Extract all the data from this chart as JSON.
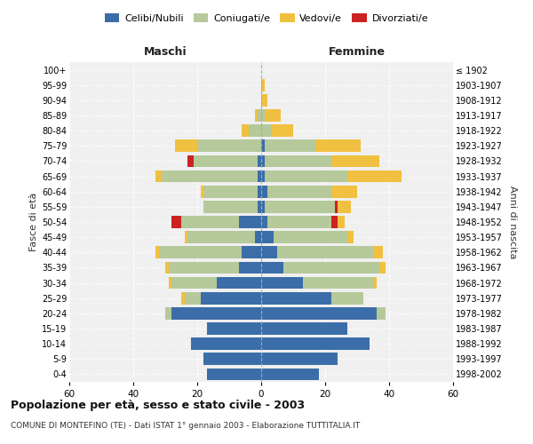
{
  "age_groups": [
    "0-4",
    "5-9",
    "10-14",
    "15-19",
    "20-24",
    "25-29",
    "30-34",
    "35-39",
    "40-44",
    "45-49",
    "50-54",
    "55-59",
    "60-64",
    "65-69",
    "70-74",
    "75-79",
    "80-84",
    "85-89",
    "90-94",
    "95-99",
    "100+"
  ],
  "birth_years": [
    "1998-2002",
    "1993-1997",
    "1988-1992",
    "1983-1987",
    "1978-1982",
    "1973-1977",
    "1968-1972",
    "1963-1967",
    "1958-1962",
    "1953-1957",
    "1948-1952",
    "1943-1947",
    "1938-1942",
    "1933-1937",
    "1928-1932",
    "1923-1927",
    "1918-1922",
    "1913-1917",
    "1908-1912",
    "1903-1907",
    "≤ 1902"
  ],
  "males": {
    "celibi": [
      17,
      18,
      22,
      17,
      28,
      19,
      14,
      7,
      6,
      2,
      7,
      1,
      1,
      1,
      1,
      0,
      0,
      0,
      0,
      0,
      0
    ],
    "coniugati": [
      0,
      0,
      0,
      0,
      2,
      5,
      14,
      22,
      26,
      21,
      18,
      17,
      17,
      30,
      20,
      20,
      4,
      1,
      0,
      0,
      0
    ],
    "vedovi": [
      0,
      0,
      0,
      0,
      0,
      1,
      1,
      1,
      1,
      1,
      0,
      0,
      1,
      2,
      0,
      7,
      2,
      1,
      0,
      0,
      0
    ],
    "divorziati": [
      0,
      0,
      0,
      0,
      0,
      0,
      0,
      0,
      0,
      0,
      3,
      0,
      0,
      0,
      2,
      0,
      0,
      0,
      0,
      0,
      0
    ]
  },
  "females": {
    "nubili": [
      18,
      24,
      34,
      27,
      36,
      22,
      13,
      7,
      5,
      4,
      2,
      1,
      2,
      1,
      1,
      1,
      0,
      0,
      0,
      0,
      0
    ],
    "coniugate": [
      0,
      0,
      0,
      0,
      3,
      10,
      22,
      30,
      30,
      23,
      20,
      22,
      20,
      26,
      21,
      16,
      3,
      1,
      0,
      0,
      0
    ],
    "vedove": [
      0,
      0,
      0,
      0,
      0,
      0,
      1,
      2,
      3,
      2,
      2,
      4,
      8,
      17,
      15,
      14,
      7,
      5,
      2,
      1,
      0
    ],
    "divorziate": [
      0,
      0,
      0,
      0,
      0,
      0,
      0,
      0,
      0,
      0,
      2,
      1,
      0,
      0,
      0,
      0,
      0,
      0,
      0,
      0,
      0
    ]
  },
  "colors": {
    "celibi": "#3b6ea8",
    "coniugati": "#b5c99a",
    "vedovi": "#f0c040",
    "divorziati": "#cc2222"
  },
  "title": "Popolazione per età, sesso e stato civile - 2003",
  "subtitle": "COMUNE DI MONTEFINO (TE) - Dati ISTAT 1° gennaio 2003 - Elaborazione TUTTITALIA.IT",
  "xlabel_left": "Maschi",
  "xlabel_right": "Femmine",
  "ylabel_left": "Fasce di età",
  "ylabel_right": "Anni di nascita",
  "xlim": 60,
  "background_color": "#ffffff",
  "plot_bg_color": "#f0f0f0",
  "grid_color": "#ffffff"
}
